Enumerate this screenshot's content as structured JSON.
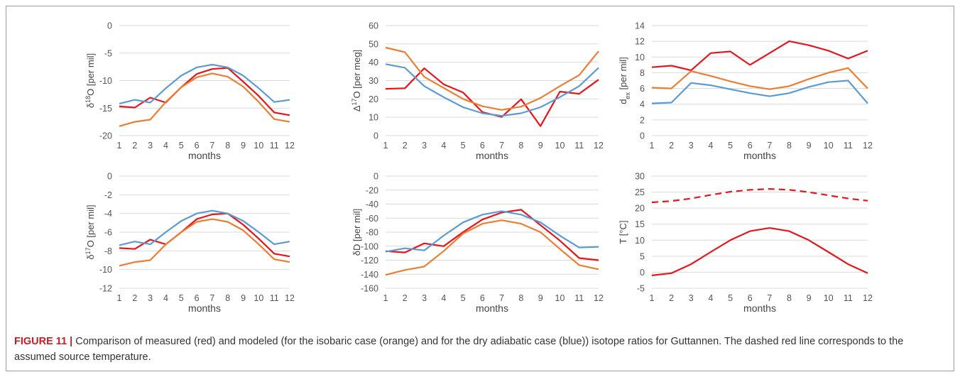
{
  "caption": {
    "label": "FIGURE 11 |",
    "text": " Comparison of measured (red) and modeled (for the isobaric case (orange) and for the dry adiabatic case (blue)) isotope ratios for Guttannen. The dashed red line corresponds to the assumed source temperature."
  },
  "colors": {
    "measured": "#e8141b",
    "isobaric": "#ed7d31",
    "adiabatic": "#5b9bd5",
    "grid": "#d9d9d9"
  },
  "chart_data": [
    {
      "type": "line",
      "ylabel_html": "δ<tspan baseline-shift='super' font-size='9'>18</tspan>O [per mil]",
      "ylabel": "δ18O [per mil]",
      "xlabel": "months",
      "ylim": [
        -20,
        0
      ],
      "ystep": 5,
      "categories": [
        1,
        2,
        3,
        4,
        5,
        6,
        7,
        8,
        9,
        10,
        11,
        12
      ],
      "series": [
        {
          "role": "measured",
          "values": [
            -14.7,
            -14.9,
            -13.1,
            -14.0,
            -11.2,
            -8.8,
            -7.9,
            -7.7,
            -10.2,
            -12.8,
            -15.8,
            -16.3
          ]
        },
        {
          "role": "isobaric",
          "values": [
            -18.3,
            -17.5,
            -17.1,
            -13.9,
            -11.2,
            -9.4,
            -8.7,
            -9.3,
            -11.1,
            -13.9,
            -17.0,
            -17.5
          ]
        },
        {
          "role": "adiabatic",
          "values": [
            -14.2,
            -13.5,
            -14.0,
            -11.4,
            -9.1,
            -7.6,
            -7.1,
            -7.6,
            -9.1,
            -11.4,
            -13.9,
            -13.5
          ]
        }
      ]
    },
    {
      "type": "line",
      "ylabel_html": "Δ<tspan baseline-shift='super' font-size='9'>17</tspan>O [per meg]",
      "ylabel": "Δ17O [per meg]",
      "xlabel": "months",
      "ylim": [
        0,
        60
      ],
      "ystep": 10,
      "categories": [
        1,
        2,
        3,
        4,
        5,
        6,
        7,
        8,
        9,
        10,
        11,
        12
      ],
      "series": [
        {
          "role": "measured",
          "values": [
            25.5,
            25.8,
            36.7,
            28.0,
            23.5,
            12.8,
            10.2,
            19.8,
            5.2,
            24.0,
            22.8,
            30.5
          ]
        },
        {
          "role": "isobaric",
          "values": [
            48.0,
            45.5,
            32.0,
            26.0,
            20.0,
            16.0,
            14.0,
            15.8,
            20.5,
            27.0,
            33.0,
            46.0
          ]
        },
        {
          "role": "adiabatic",
          "values": [
            39.0,
            37.0,
            27.0,
            21.0,
            15.5,
            12.2,
            10.8,
            12.2,
            15.5,
            21.0,
            27.0,
            37.0
          ]
        }
      ]
    },
    {
      "type": "line",
      "ylabel_html": "d<tspan baseline-shift='sub' font-size='9'>ex</tspan> [per mil]",
      "ylabel": "dex [per mil]",
      "xlabel": "months",
      "ylim": [
        0,
        14
      ],
      "ystep": 2,
      "categories": [
        1,
        2,
        3,
        4,
        5,
        6,
        7,
        8,
        9,
        10,
        11,
        12
      ],
      "series": [
        {
          "role": "measured",
          "values": [
            8.7,
            8.9,
            8.3,
            10.5,
            10.7,
            9.0,
            10.5,
            12.0,
            11.5,
            10.8,
            9.8,
            10.8
          ]
        },
        {
          "role": "isobaric",
          "values": [
            6.1,
            6.0,
            8.2,
            7.6,
            6.9,
            6.3,
            5.9,
            6.3,
            7.2,
            8.0,
            8.6,
            6.0
          ]
        },
        {
          "role": "adiabatic",
          "values": [
            4.1,
            4.2,
            6.7,
            6.4,
            5.9,
            5.4,
            5.0,
            5.4,
            6.2,
            6.8,
            7.0,
            4.1
          ]
        }
      ]
    },
    {
      "type": "line",
      "ylabel_html": "δ<tspan baseline-shift='super' font-size='9'>17</tspan>O [per mil]",
      "ylabel": "δ17O [per mil]",
      "xlabel": "months",
      "ylim": [
        -12,
        0
      ],
      "ystep": 2,
      "categories": [
        1,
        2,
        3,
        4,
        5,
        6,
        7,
        8,
        9,
        10,
        11,
        12
      ],
      "series": [
        {
          "role": "measured",
          "values": [
            -7.7,
            -7.8,
            -6.8,
            -7.3,
            -6.0,
            -4.6,
            -4.1,
            -4.0,
            -5.2,
            -6.7,
            -8.3,
            -8.6
          ]
        },
        {
          "role": "isobaric",
          "values": [
            -9.6,
            -9.2,
            -9.0,
            -7.3,
            -6.0,
            -4.9,
            -4.6,
            -4.9,
            -5.8,
            -7.3,
            -8.9,
            -9.2
          ]
        },
        {
          "role": "adiabatic",
          "values": [
            -7.4,
            -7.0,
            -7.3,
            -6.0,
            -4.8,
            -4.0,
            -3.7,
            -4.0,
            -4.8,
            -6.0,
            -7.3,
            -7.0
          ]
        }
      ]
    },
    {
      "type": "line",
      "ylabel_html": "δD [per mil]",
      "ylabel": "δD [per mil]",
      "xlabel": "months",
      "ylim": [
        -160,
        0
      ],
      "ystep": 20,
      "categories": [
        1,
        2,
        3,
        4,
        5,
        6,
        7,
        8,
        9,
        10,
        11,
        12
      ],
      "series": [
        {
          "role": "measured",
          "values": [
            -107,
            -109,
            -96,
            -100,
            -80,
            -62,
            -52,
            -48,
            -70,
            -92,
            -117,
            -120
          ]
        },
        {
          "role": "isobaric",
          "values": [
            -141,
            -134,
            -129,
            -107,
            -82,
            -68,
            -63,
            -68,
            -80,
            -104,
            -127,
            -133
          ]
        },
        {
          "role": "adiabatic",
          "values": [
            -108,
            -103,
            -106,
            -85,
            -66,
            -55,
            -50,
            -55,
            -66,
            -85,
            -102,
            -101
          ]
        }
      ]
    },
    {
      "type": "line",
      "ylabel_html": "T [°C]",
      "ylabel": "T [°C]",
      "xlabel": "months",
      "ylim": [
        -5,
        30
      ],
      "ystep": 5,
      "categories": [
        1,
        2,
        3,
        4,
        5,
        6,
        7,
        8,
        9,
        10,
        11,
        12
      ],
      "series": [
        {
          "role": "measured",
          "dashed": true,
          "values": [
            21.8,
            22.2,
            23.0,
            24.1,
            25.1,
            25.7,
            26.0,
            25.7,
            25.0,
            24.0,
            23.0,
            22.3
          ]
        },
        {
          "role": "measured",
          "values": [
            -1.0,
            -0.3,
            2.5,
            6.3,
            10.0,
            12.8,
            13.8,
            12.8,
            10.0,
            6.3,
            2.5,
            -0.3
          ]
        }
      ]
    }
  ]
}
